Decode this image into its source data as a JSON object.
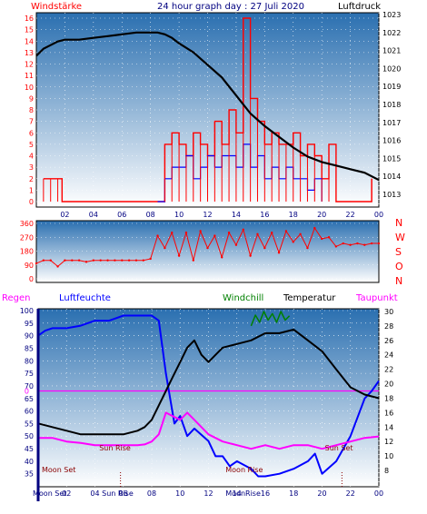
{
  "header": {
    "wind_label": "Windstärke",
    "title": "24 hour graph day : 27 Juli 2020",
    "pressure_label": "Luftdruck"
  },
  "colors": {
    "wind": "#ff0000",
    "gust": "#ff0000",
    "pressure": "#000000",
    "lowwind": "#0000ff",
    "humidity": "#0000ff",
    "temperature": "#000000",
    "dewpoint": "#ff00ff",
    "windchill": "#008000",
    "axis_blue": "#000080",
    "bg_top": "#2a6fb0",
    "bg_bottom": "#ffffff"
  },
  "chart_data": [
    {
      "type": "line",
      "name": "wind-pressure",
      "x_ticks": [
        "02",
        "04",
        "06",
        "08",
        "10",
        "12",
        "14",
        "16",
        "18",
        "20",
        "22",
        "00"
      ],
      "y_left_ticks": [
        "0",
        "1",
        "2",
        "3",
        "4",
        "5",
        "6",
        "7",
        "8",
        "9",
        "10",
        "11",
        "12",
        "13",
        "14",
        "15",
        "16"
      ],
      "y_right_ticks": [
        "1013",
        "1014",
        "1015",
        "1016",
        "1017",
        "1018",
        "1019",
        "1020",
        "1021",
        "1022",
        "1023"
      ],
      "ylim_left": [
        0,
        16
      ],
      "ylim_right": [
        1013,
        1023
      ],
      "xlim": [
        0,
        24
      ],
      "pressure": {
        "x": [
          0,
          0.5,
          1,
          1.5,
          2,
          3,
          4,
          5,
          6,
          7,
          8,
          8.5,
          9,
          9.5,
          10,
          11,
          12,
          13,
          14,
          15,
          16,
          17,
          18,
          19,
          20,
          21,
          22,
          23,
          24
        ],
        "y": [
          1020.7,
          1021.1,
          1021.3,
          1021.5,
          1021.6,
          1021.6,
          1021.7,
          1021.8,
          1021.9,
          1022.0,
          1022.0,
          1022.0,
          1021.9,
          1021.7,
          1021.4,
          1020.9,
          1020.2,
          1019.5,
          1018.5,
          1017.5,
          1016.8,
          1016.2,
          1015.6,
          1015.1,
          1014.8,
          1014.6,
          1014.4,
          1014.2,
          1013.8
        ]
      },
      "wind": {
        "x": [
          0.5,
          1,
          1.5,
          1.8,
          8.5,
          9,
          9.5,
          10,
          10.5,
          11,
          11.5,
          12,
          12.5,
          13,
          13.5,
          14,
          14.5,
          15,
          15.5,
          16,
          16.5,
          17,
          17.5,
          18,
          18.5,
          19,
          19.5,
          20,
          20.5,
          21,
          22,
          23,
          23.5
        ],
        "y": [
          2,
          2,
          2,
          0,
          0,
          5,
          6,
          5,
          4,
          6,
          5,
          4,
          7,
          5,
          8,
          6,
          16,
          9,
          7,
          5,
          6,
          5,
          5,
          6,
          4,
          5,
          4,
          2,
          5,
          0,
          0,
          0,
          2
        ]
      },
      "lowwind": {
        "x": [
          8.5,
          9,
          9.5,
          10,
          10.5,
          11,
          11.5,
          12,
          12.5,
          13,
          13.5,
          14,
          14.5,
          15,
          15.5,
          16,
          16.5,
          17,
          17.5,
          18,
          18.5,
          19,
          19.5,
          20
        ],
        "y": [
          0,
          2,
          3,
          3,
          4,
          2,
          3,
          4,
          3,
          4,
          4,
          3,
          5,
          3,
          4,
          2,
          3,
          2,
          3,
          2,
          2,
          1,
          2,
          0
        ]
      }
    },
    {
      "type": "scatter",
      "name": "wind-direction",
      "y_left_ticks": [
        "0",
        "90",
        "180",
        "270",
        "360"
      ],
      "y_right_ticks": [
        "N",
        "W",
        "S",
        "O",
        "N"
      ],
      "ylim": [
        0,
        360
      ],
      "xlim": [
        0,
        24
      ],
      "direction": {
        "x": [
          0,
          0.5,
          1,
          1.5,
          2,
          2.5,
          3,
          3.5,
          4,
          4.5,
          5,
          5.5,
          6,
          6.5,
          7,
          7.5,
          8,
          8.5,
          9,
          9.5,
          10,
          10.5,
          11,
          11.5,
          12,
          12.5,
          13,
          13.5,
          14,
          14.5,
          15,
          15.5,
          16,
          16.5,
          17,
          17.5,
          18,
          18.5,
          19,
          19.5,
          20,
          20.5,
          21,
          21.5,
          22,
          22.5,
          23,
          23.5,
          24
        ],
        "y": [
          100,
          120,
          120,
          80,
          120,
          120,
          120,
          110,
          120,
          120,
          120,
          120,
          120,
          120,
          120,
          120,
          130,
          280,
          200,
          300,
          150,
          300,
          120,
          310,
          200,
          280,
          140,
          300,
          220,
          320,
          150,
          290,
          200,
          300,
          170,
          310,
          240,
          290,
          200,
          330,
          260,
          270,
          210,
          230,
          220,
          230,
          220,
          230,
          230
        ]
      }
    },
    {
      "type": "line",
      "name": "temperature-humidity",
      "labels": {
        "regen": "Regen",
        "luftfeuchte": "Luftfeuchte",
        "windchill": "Windchill",
        "temperatur": "Temperatur",
        "taupunkt": "Taupunkt"
      },
      "x_ticks": [
        "02",
        "04",
        "06",
        "08",
        "10",
        "12",
        "14",
        "16",
        "18",
        "20",
        "22",
        "00"
      ],
      "y_left_ticks": [
        "35",
        "40",
        "45",
        "50",
        "55",
        "60",
        "65",
        "70",
        "75",
        "80",
        "85",
        "90",
        "95",
        "100"
      ],
      "y_right_ticks": [
        "8",
        "10",
        "12",
        "14",
        "16",
        "18",
        "20",
        "22",
        "24",
        "26",
        "28",
        "30"
      ],
      "rain_zero_label": "0",
      "ylim_left": [
        32,
        100
      ],
      "ylim_right": [
        7,
        30
      ],
      "xlim": [
        0,
        24
      ],
      "annotations": {
        "moon_set": "Moon Set",
        "moon_rise": "Moon Rise",
        "sun_rise": "Sun Rise",
        "sun_set": "Sun Set",
        "x_moon_set": "Moon Set",
        "x_sun_rise": "Sun Rise",
        "x_moon_rise": "MoonRise"
      },
      "humidity": {
        "x": [
          0,
          0.5,
          1,
          2,
          3,
          4,
          5,
          6,
          7,
          8,
          8.5,
          9,
          9.3,
          9.6,
          10,
          10.5,
          11,
          12,
          12.5,
          13,
          13.5,
          14,
          15,
          15.5,
          16,
          17,
          18,
          19,
          19.5,
          20,
          21,
          22,
          23,
          23.5,
          24
        ],
        "y": [
          90,
          92,
          93,
          93,
          94,
          96,
          96,
          98,
          98,
          98,
          96,
          75,
          65,
          55,
          58,
          50,
          53,
          48,
          42,
          42,
          38,
          40,
          37,
          34,
          34,
          35,
          37,
          40,
          43,
          35,
          40,
          50,
          65,
          68,
          72
        ]
      },
      "temperature": {
        "x": [
          0,
          1,
          2,
          3,
          4,
          5,
          6,
          7,
          7.5,
          8,
          8.5,
          9,
          9.5,
          10,
          10.5,
          11,
          11.5,
          12,
          12.5,
          13,
          14,
          15,
          16,
          17,
          18,
          19,
          20,
          21,
          22,
          23,
          24
        ],
        "y": [
          14.5,
          14,
          13.5,
          13,
          13,
          13,
          13,
          13.5,
          14,
          15,
          17,
          19,
          21,
          23,
          25,
          26,
          24,
          23,
          24,
          25,
          25.5,
          26,
          27,
          27,
          27.5,
          26,
          24.5,
          22,
          19.5,
          18.5,
          18
        ]
      },
      "dewpoint": {
        "x": [
          0,
          1,
          2,
          3,
          4,
          5,
          6,
          7,
          7.5,
          8,
          8.5,
          9,
          9.5,
          10,
          10.5,
          11,
          11.5,
          12,
          13,
          14,
          15,
          16,
          17,
          18,
          19,
          20,
          21,
          22,
          23,
          24
        ],
        "y": [
          12.5,
          12.5,
          12,
          11.8,
          11.5,
          11.5,
          11.5,
          11.5,
          11.6,
          12,
          13,
          16,
          15.5,
          15,
          16,
          15,
          14,
          13,
          12,
          11.5,
          11,
          11.5,
          11,
          11.5,
          11.5,
          11,
          11.5,
          12,
          12.5,
          12.7
        ]
      },
      "windchill": {
        "x": [
          15,
          15.3,
          15.6,
          15.9,
          16.2,
          16.5,
          16.8,
          17.1,
          17.4,
          17.7
        ],
        "y": [
          28,
          29.5,
          28.5,
          30,
          28.8,
          29.7,
          28.5,
          30,
          28.8,
          29.4
        ]
      },
      "rain_zero": 0
    }
  ]
}
